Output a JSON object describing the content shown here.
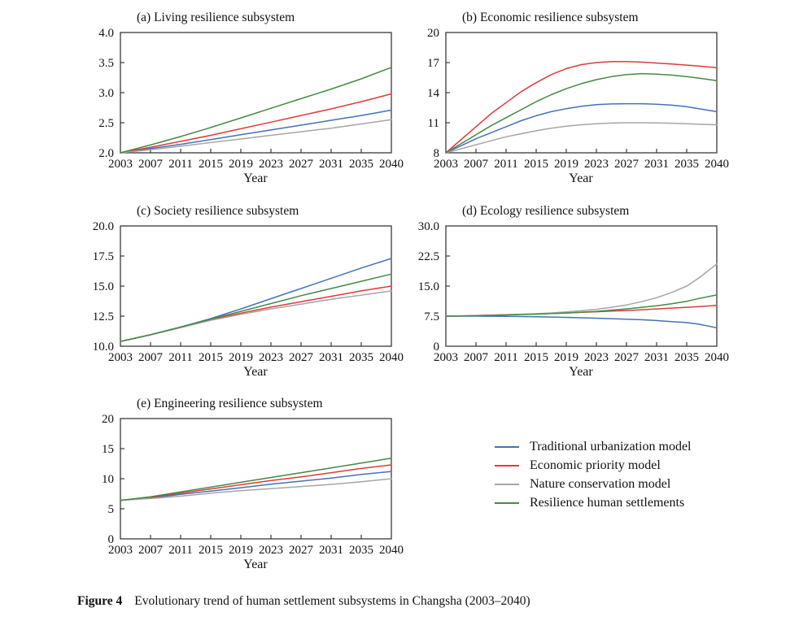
{
  "figure": {
    "caption_label": "Figure 4",
    "caption_text": "Evolutionary trend of human settlement subsystems in Changsha (2003–2040)"
  },
  "palette": {
    "blue": "#4472b8",
    "red": "#e03a3a",
    "gray": "#a6a6a6",
    "green": "#448a44",
    "axis": "#3a3a3a"
  },
  "legend": {
    "items": [
      {
        "label": "Traditional urbanization model",
        "color": "blue"
      },
      {
        "label": "Economic priority model",
        "color": "red"
      },
      {
        "label": "Nature conservation model",
        "color": "gray"
      },
      {
        "label": "Resilience human settlements",
        "color": "green"
      }
    ]
  },
  "chart_data": [
    {
      "type": "line",
      "title": "(a) Living resilience subsystem",
      "xlabel": "Year",
      "xlim": [
        2003,
        2040
      ],
      "xticks": [
        2003,
        2007,
        2011,
        2015,
        2019,
        2023,
        2027,
        2031,
        2035,
        2040
      ],
      "ylim": [
        2.0,
        4.0
      ],
      "yticks": [
        "2.0",
        "2.5",
        "3.0",
        "3.5",
        "4.0"
      ],
      "grid": false,
      "x": [
        2003,
        2007,
        2011,
        2015,
        2019,
        2023,
        2027,
        2031,
        2035,
        2040
      ],
      "series": [
        {
          "name": "Traditional urbanization model",
          "color": "blue",
          "values": [
            2.0,
            2.07,
            2.14,
            2.22,
            2.3,
            2.38,
            2.46,
            2.54,
            2.62,
            2.71
          ]
        },
        {
          "name": "Economic priority model",
          "color": "red",
          "values": [
            2.0,
            2.09,
            2.19,
            2.29,
            2.4,
            2.51,
            2.62,
            2.73,
            2.85,
            2.98
          ]
        },
        {
          "name": "Nature conservation model",
          "color": "gray",
          "values": [
            2.0,
            2.05,
            2.11,
            2.17,
            2.23,
            2.29,
            2.35,
            2.41,
            2.48,
            2.55
          ]
        },
        {
          "name": "Resilience human settlements",
          "color": "green",
          "values": [
            2.0,
            2.13,
            2.27,
            2.42,
            2.58,
            2.74,
            2.9,
            3.06,
            3.23,
            3.42
          ]
        }
      ]
    },
    {
      "type": "line",
      "title": "(b) Economic resilience subsystem",
      "xlabel": "Year",
      "xlim": [
        2003,
        2040
      ],
      "xticks": [
        2003,
        2007,
        2011,
        2015,
        2019,
        2023,
        2027,
        2031,
        2035,
        2040
      ],
      "ylim": [
        8,
        20
      ],
      "yticks": [
        "8",
        "11",
        "14",
        "17",
        "20"
      ],
      "grid": false,
      "x": [
        2003,
        2005,
        2007,
        2009,
        2011,
        2013,
        2015,
        2017,
        2019,
        2021,
        2023,
        2025,
        2027,
        2029,
        2031,
        2033,
        2035,
        2037,
        2040
      ],
      "series": [
        {
          "name": "Traditional urbanization model",
          "color": "blue",
          "values": [
            8.0,
            8.7,
            9.4,
            10.0,
            10.6,
            11.2,
            11.7,
            12.1,
            12.4,
            12.65,
            12.8,
            12.87,
            12.9,
            12.9,
            12.85,
            12.75,
            12.6,
            12.4,
            12.1
          ]
        },
        {
          "name": "Economic priority model",
          "color": "red",
          "values": [
            8.0,
            9.3,
            10.6,
            11.9,
            13.0,
            14.1,
            15.0,
            15.8,
            16.4,
            16.8,
            17.0,
            17.1,
            17.1,
            17.05,
            16.95,
            16.85,
            16.75,
            16.65,
            16.5
          ]
        },
        {
          "name": "Nature conservation model",
          "color": "gray",
          "values": [
            8.0,
            8.4,
            8.8,
            9.2,
            9.6,
            9.9,
            10.2,
            10.45,
            10.65,
            10.8,
            10.9,
            10.97,
            11.0,
            11.0,
            10.98,
            10.95,
            10.9,
            10.85,
            10.8
          ]
        },
        {
          "name": "Resilience human settlements",
          "color": "green",
          "values": [
            8.0,
            8.9,
            9.8,
            10.7,
            11.5,
            12.3,
            13.1,
            13.8,
            14.4,
            14.9,
            15.3,
            15.6,
            15.8,
            15.9,
            15.85,
            15.75,
            15.6,
            15.45,
            15.2
          ]
        }
      ]
    },
    {
      "type": "line",
      "title": "(c) Society resilience subsystem",
      "xlabel": "Year",
      "xlim": [
        2003,
        2040
      ],
      "xticks": [
        2003,
        2007,
        2011,
        2015,
        2019,
        2023,
        2027,
        2031,
        2035,
        2040
      ],
      "ylim": [
        10.0,
        20.0
      ],
      "yticks": [
        "10.0",
        "12.5",
        "15.0",
        "17.5",
        "20.0"
      ],
      "grid": false,
      "x": [
        2003,
        2007,
        2011,
        2015,
        2019,
        2023,
        2027,
        2031,
        2035,
        2040
      ],
      "series": [
        {
          "name": "Traditional urbanization model",
          "color": "blue",
          "values": [
            10.4,
            10.95,
            11.6,
            12.3,
            13.1,
            13.95,
            14.8,
            15.65,
            16.5,
            17.3
          ]
        },
        {
          "name": "Economic priority model",
          "color": "red",
          "values": [
            10.4,
            10.95,
            11.55,
            12.2,
            12.75,
            13.25,
            13.7,
            14.15,
            14.6,
            15.0
          ]
        },
        {
          "name": "Nature conservation model",
          "color": "gray",
          "values": [
            10.4,
            10.95,
            11.55,
            12.15,
            12.65,
            13.1,
            13.5,
            13.9,
            14.25,
            14.6
          ]
        },
        {
          "name": "Resilience human settlements",
          "color": "green",
          "values": [
            10.4,
            10.95,
            11.6,
            12.25,
            12.9,
            13.55,
            14.2,
            14.8,
            15.4,
            16.0
          ]
        }
      ]
    },
    {
      "type": "line",
      "title": "(d) Ecology resilience subsystem",
      "xlabel": "Year",
      "xlim": [
        2003,
        2040
      ],
      "xticks": [
        2003,
        2007,
        2011,
        2015,
        2019,
        2023,
        2027,
        2031,
        2035,
        2040
      ],
      "ylim": [
        0,
        30.0
      ],
      "yticks": [
        "0",
        "7.5",
        "15.0",
        "22.5",
        "30.0"
      ],
      "grid": false,
      "x": [
        2003,
        2005,
        2007,
        2009,
        2011,
        2013,
        2015,
        2017,
        2019,
        2021,
        2023,
        2025,
        2027,
        2029,
        2031,
        2033,
        2035,
        2037,
        2040
      ],
      "series": [
        {
          "name": "Traditional urbanization model",
          "color": "blue",
          "values": [
            7.5,
            7.5,
            7.5,
            7.48,
            7.45,
            7.4,
            7.35,
            7.28,
            7.2,
            7.1,
            7.0,
            6.88,
            6.75,
            6.6,
            6.4,
            6.15,
            5.9,
            5.5,
            4.6
          ]
        },
        {
          "name": "Economic priority model",
          "color": "red",
          "values": [
            7.5,
            7.57,
            7.65,
            7.75,
            7.85,
            7.95,
            8.05,
            8.18,
            8.3,
            8.45,
            8.6,
            8.75,
            8.9,
            9.1,
            9.3,
            9.5,
            9.7,
            9.9,
            10.2
          ]
        },
        {
          "name": "Nature conservation model",
          "color": "gray",
          "values": [
            7.5,
            7.55,
            7.6,
            7.7,
            7.8,
            7.95,
            8.1,
            8.3,
            8.55,
            8.85,
            9.2,
            9.7,
            10.3,
            11.1,
            12.1,
            13.4,
            15.0,
            17.0,
            20.5
          ]
        },
        {
          "name": "Resilience human settlements",
          "color": "green",
          "values": [
            7.5,
            7.55,
            7.6,
            7.7,
            7.8,
            7.9,
            8.0,
            8.15,
            8.3,
            8.5,
            8.7,
            9.0,
            9.3,
            9.7,
            10.1,
            10.6,
            11.2,
            11.9,
            12.8
          ]
        }
      ]
    },
    {
      "type": "line",
      "title": "(e) Engineering resilience subsystem",
      "xlabel": "Year",
      "xlim": [
        2003,
        2040
      ],
      "xticks": [
        2003,
        2007,
        2011,
        2015,
        2019,
        2023,
        2027,
        2031,
        2035,
        2040
      ],
      "ylim": [
        0,
        20
      ],
      "yticks": [
        "0",
        "5",
        "10",
        "15",
        "20"
      ],
      "grid": false,
      "x": [
        2003,
        2007,
        2011,
        2015,
        2019,
        2023,
        2027,
        2031,
        2035,
        2040
      ],
      "series": [
        {
          "name": "Traditional urbanization model",
          "color": "blue",
          "values": [
            6.4,
            6.8,
            7.4,
            7.95,
            8.5,
            9.1,
            9.6,
            10.1,
            10.7,
            11.2
          ]
        },
        {
          "name": "Economic priority model",
          "color": "red",
          "values": [
            6.4,
            6.9,
            7.6,
            8.3,
            9.0,
            9.7,
            10.3,
            11.0,
            11.7,
            12.3
          ]
        },
        {
          "name": "Nature conservation model",
          "color": "gray",
          "values": [
            6.4,
            6.7,
            7.1,
            7.6,
            8.0,
            8.35,
            8.7,
            9.05,
            9.5,
            10.0
          ]
        },
        {
          "name": "Resilience human settlements",
          "color": "green",
          "values": [
            6.4,
            7.0,
            7.8,
            8.6,
            9.4,
            10.2,
            11.0,
            11.8,
            12.6,
            13.4
          ]
        }
      ]
    }
  ]
}
